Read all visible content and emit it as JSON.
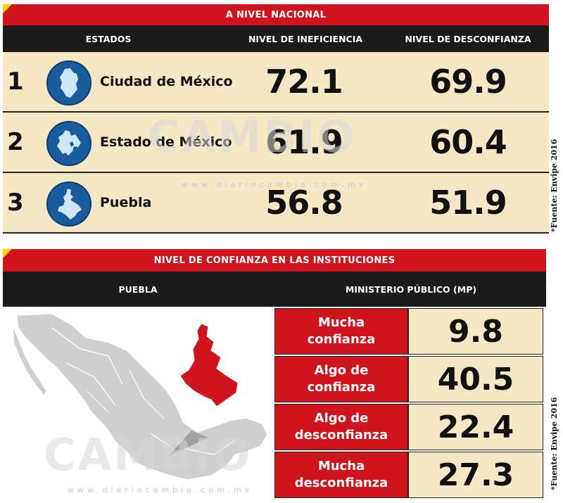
{
  "section1": {
    "title": "A NIVEL NACIONAL",
    "headers": {
      "estados": "ESTADOS",
      "ineficiencia": "NIVEL DE INEFICIENCIA",
      "desconfianza": "NIVEL DE DESCONFIANZA"
    },
    "rows": [
      {
        "rank": "1",
        "state": "Ciudad de México",
        "ineficiencia": "72.1",
        "desconfianza": "69.9"
      },
      {
        "rank": "2",
        "state": "Estado de México",
        "ineficiencia": "61.9",
        "desconfianza": "60.4"
      },
      {
        "rank": "3",
        "state": "Puebla",
        "ineficiencia": "56.8",
        "desconfianza": "51.9"
      }
    ],
    "source": "*Fuente: Envipe 2016"
  },
  "section2": {
    "title": "NIVEL DE CONFIANZA EN LAS INSTITUCIONES",
    "headers": {
      "left": "PUEBLA",
      "right": "MINISTERIO PÚBLICO (MP)"
    },
    "rows": [
      {
        "label_line1": "Mucha",
        "label_line2": "confianza",
        "value": "9.8"
      },
      {
        "label_line1": "Algo de",
        "label_line2": "confianza",
        "value": "40.5"
      },
      {
        "label_line1": "Algo de",
        "label_line2": "desconfianza",
        "value": "22.4"
      },
      {
        "label_line1": "Mucha",
        "label_line2": "desconfianza",
        "value": "27.3"
      }
    ],
    "source": "*Fuente: Envipe 2016"
  },
  "watermark": {
    "brand": "CAMBIO",
    "url": "www.diariocambio.com.mx"
  },
  "colors": {
    "red": "#d0141e",
    "black": "#1b1b1b",
    "cream": "#f7e8c5",
    "blue": "#1a5d9c",
    "yellow": "#ffd200"
  },
  "icons": [
    "cdmx-map-icon",
    "edomex-map-icon",
    "puebla-map-icon",
    "mexico-map"
  ]
}
